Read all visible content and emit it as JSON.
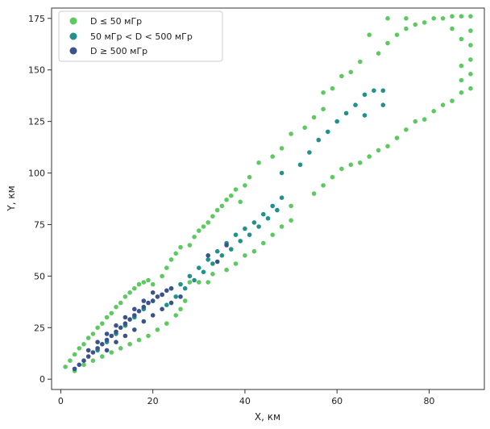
{
  "chart_data": {
    "type": "scatter",
    "xlabel": "X, км",
    "ylabel": "Y, км",
    "xlim": [
      -2,
      92
    ],
    "ylim": [
      -5,
      180
    ],
    "xticks": [
      0,
      20,
      40,
      60,
      80
    ],
    "yticks": [
      0,
      25,
      50,
      75,
      100,
      125,
      150,
      175
    ],
    "grid": false,
    "legend_position": "top-left",
    "series": [
      {
        "name": "D ≤ 50 мГр",
        "color": "#5ec962",
        "points": [
          [
            1,
            6
          ],
          [
            2,
            9
          ],
          [
            3,
            12
          ],
          [
            4,
            15
          ],
          [
            5,
            17
          ],
          [
            6,
            20
          ],
          [
            7,
            22
          ],
          [
            8,
            25
          ],
          [
            9,
            27
          ],
          [
            10,
            30
          ],
          [
            11,
            32
          ],
          [
            12,
            35
          ],
          [
            13,
            37
          ],
          [
            14,
            40
          ],
          [
            15,
            42
          ],
          [
            16,
            44
          ],
          [
            17,
            46
          ],
          [
            18,
            47
          ],
          [
            19,
            48
          ],
          [
            20,
            46
          ],
          [
            3,
            4
          ],
          [
            5,
            7
          ],
          [
            7,
            9
          ],
          [
            9,
            11
          ],
          [
            11,
            13
          ],
          [
            13,
            15
          ],
          [
            15,
            17
          ],
          [
            17,
            19
          ],
          [
            19,
            21
          ],
          [
            21,
            24
          ],
          [
            23,
            27
          ],
          [
            25,
            31
          ],
          [
            26,
            34
          ],
          [
            27,
            38
          ],
          [
            22,
            50
          ],
          [
            23,
            54
          ],
          [
            24,
            58
          ],
          [
            25,
            61
          ],
          [
            26,
            64
          ],
          [
            28,
            65
          ],
          [
            29,
            69
          ],
          [
            30,
            72
          ],
          [
            31,
            74
          ],
          [
            32,
            76
          ],
          [
            33,
            79
          ],
          [
            34,
            82
          ],
          [
            35,
            84
          ],
          [
            36,
            87
          ],
          [
            37,
            89
          ],
          [
            38,
            92
          ],
          [
            40,
            94
          ],
          [
            28,
            47
          ],
          [
            30,
            47
          ],
          [
            32,
            47
          ],
          [
            33,
            51
          ],
          [
            36,
            53
          ],
          [
            38,
            56
          ],
          [
            40,
            60
          ],
          [
            42,
            62
          ],
          [
            44,
            66
          ],
          [
            46,
            70
          ],
          [
            48,
            74
          ],
          [
            50,
            77
          ],
          [
            50,
            84
          ],
          [
            39,
            86
          ],
          [
            41,
            98
          ],
          [
            43,
            105
          ],
          [
            46,
            108
          ],
          [
            48,
            112
          ],
          [
            50,
            119
          ],
          [
            53,
            122
          ],
          [
            55,
            127
          ],
          [
            57,
            131
          ],
          [
            57,
            139
          ],
          [
            59,
            141
          ],
          [
            61,
            147
          ],
          [
            63,
            149
          ],
          [
            65,
            154
          ],
          [
            67,
            167
          ],
          [
            55,
            90
          ],
          [
            57,
            94
          ],
          [
            59,
            98
          ],
          [
            61,
            102
          ],
          [
            63,
            104
          ],
          [
            65,
            105
          ],
          [
            67,
            108
          ],
          [
            69,
            111
          ],
          [
            71,
            113
          ],
          [
            73,
            117
          ],
          [
            75,
            121
          ],
          [
            77,
            125
          ],
          [
            79,
            126
          ],
          [
            81,
            130
          ],
          [
            83,
            133
          ],
          [
            85,
            135
          ],
          [
            87,
            139
          ],
          [
            89,
            141
          ],
          [
            69,
            158
          ],
          [
            71,
            163
          ],
          [
            73,
            167
          ],
          [
            75,
            170
          ],
          [
            77,
            172
          ],
          [
            79,
            173
          ],
          [
            81,
            175
          ],
          [
            83,
            175
          ],
          [
            85,
            176
          ],
          [
            87,
            176
          ],
          [
            89,
            176
          ],
          [
            71,
            175
          ],
          [
            75,
            175
          ],
          [
            85,
            170
          ],
          [
            89,
            169
          ],
          [
            87,
            165
          ],
          [
            89,
            162
          ],
          [
            89,
            155
          ],
          [
            87,
            152
          ],
          [
            89,
            148
          ],
          [
            87,
            145
          ]
        ]
      },
      {
        "name": "50 мГр < D < 500 мГр",
        "color": "#21918c",
        "points": [
          [
            8,
            14
          ],
          [
            10,
            18
          ],
          [
            12,
            22
          ],
          [
            14,
            26
          ],
          [
            16,
            30
          ],
          [
            18,
            34
          ],
          [
            20,
            38
          ],
          [
            22,
            41
          ],
          [
            24,
            44
          ],
          [
            26,
            46
          ],
          [
            28,
            50
          ],
          [
            30,
            54
          ],
          [
            32,
            58
          ],
          [
            34,
            62
          ],
          [
            36,
            66
          ],
          [
            38,
            70
          ],
          [
            40,
            73
          ],
          [
            42,
            76
          ],
          [
            44,
            80
          ],
          [
            46,
            84
          ],
          [
            48,
            88
          ],
          [
            23,
            36
          ],
          [
            25,
            40
          ],
          [
            27,
            44
          ],
          [
            29,
            48
          ],
          [
            31,
            52
          ],
          [
            33,
            56
          ],
          [
            35,
            60
          ],
          [
            37,
            63
          ],
          [
            39,
            67
          ],
          [
            41,
            70
          ],
          [
            43,
            74
          ],
          [
            45,
            78
          ],
          [
            47,
            82
          ],
          [
            48,
            100
          ],
          [
            52,
            104
          ],
          [
            54,
            110
          ],
          [
            56,
            116
          ],
          [
            58,
            120
          ],
          [
            60,
            125
          ],
          [
            62,
            129
          ],
          [
            64,
            133
          ],
          [
            66,
            138
          ],
          [
            68,
            140
          ],
          [
            70,
            140
          ],
          [
            70,
            133
          ],
          [
            66,
            128
          ]
        ]
      },
      {
        "name": "D ≥ 500 мГр",
        "color": "#3b528b",
        "points": [
          [
            3,
            5
          ],
          [
            4,
            7
          ],
          [
            5,
            9
          ],
          [
            6,
            11
          ],
          [
            7,
            13
          ],
          [
            8,
            15
          ],
          [
            9,
            17
          ],
          [
            10,
            19
          ],
          [
            11,
            21
          ],
          [
            12,
            23
          ],
          [
            13,
            25
          ],
          [
            14,
            27
          ],
          [
            15,
            29
          ],
          [
            16,
            31
          ],
          [
            17,
            33
          ],
          [
            18,
            35
          ],
          [
            19,
            37
          ],
          [
            20,
            38
          ],
          [
            21,
            40
          ],
          [
            22,
            41
          ],
          [
            23,
            43
          ],
          [
            24,
            44
          ],
          [
            6,
            14
          ],
          [
            8,
            18
          ],
          [
            10,
            22
          ],
          [
            12,
            26
          ],
          [
            14,
            30
          ],
          [
            16,
            34
          ],
          [
            18,
            38
          ],
          [
            20,
            42
          ],
          [
            10,
            14
          ],
          [
            12,
            18
          ],
          [
            14,
            21
          ],
          [
            16,
            24
          ],
          [
            18,
            28
          ],
          [
            20,
            31
          ],
          [
            22,
            34
          ],
          [
            24,
            37
          ],
          [
            26,
            40
          ],
          [
            32,
            60
          ],
          [
            36,
            65
          ],
          [
            34,
            57
          ]
        ]
      }
    ]
  }
}
